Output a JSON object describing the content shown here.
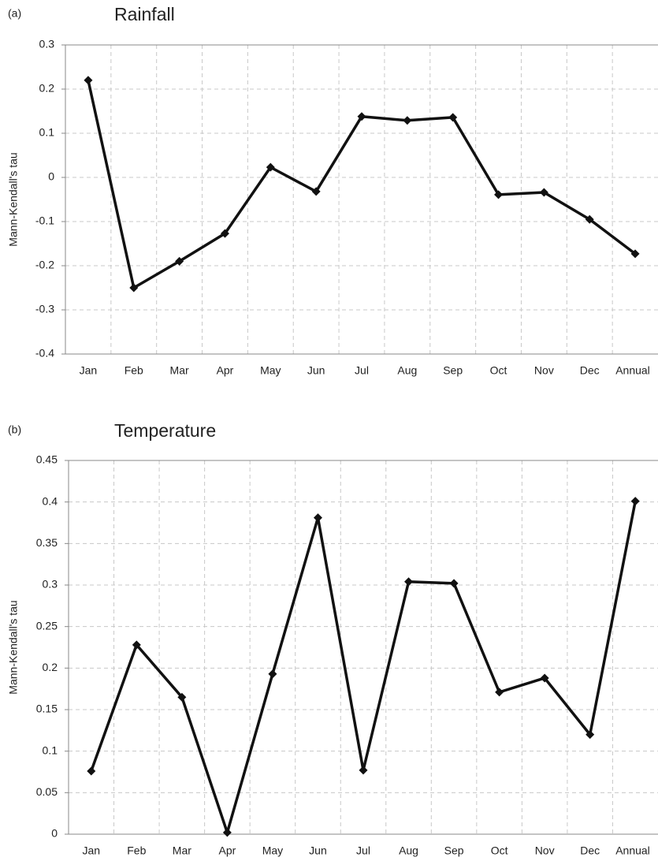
{
  "chart_data": [
    {
      "type": "line",
      "label": "(a)",
      "title": "Rainfall",
      "y_label": "Mann-Kendall's tau",
      "categories": [
        "Jan",
        "Feb",
        "Mar",
        "Apr",
        "May",
        "Jun",
        "Jul",
        "Aug",
        "Sep",
        "Oct",
        "Nov",
        "Dec",
        "Annual"
      ],
      "series": [
        {
          "color": "#111111",
          "values": [
            0.22,
            -0.25,
            -0.19,
            -0.127,
            0.023,
            -0.032,
            0.138,
            0.129,
            0.136,
            -0.039,
            -0.034,
            -0.095,
            -0.173
          ]
        }
      ],
      "ylim": [
        -0.4,
        0.3
      ],
      "yticks": [
        -0.4,
        -0.3,
        -0.2,
        -0.1,
        0,
        0.1,
        0.2,
        0.3
      ],
      "grid": true
    },
    {
      "type": "line",
      "label": "(b)",
      "title": "Temperature",
      "y_label": "Mann-Kendall's tau",
      "categories": [
        "Jan",
        "Feb",
        "Mar",
        "Apr",
        "May",
        "Jun",
        "Jul",
        "Aug",
        "Sep",
        "Oct",
        "Nov",
        "Dec",
        "Annual"
      ],
      "series": [
        {
          "color": "#111111",
          "values": [
            0.076,
            0.228,
            0.165,
            0.002,
            0.193,
            0.381,
            0.077,
            0.304,
            0.302,
            0.171,
            0.188,
            0.12,
            0.401
          ]
        }
      ],
      "ylim": [
        0,
        0.45
      ],
      "yticks": [
        0,
        0.05,
        0.1,
        0.15,
        0.2,
        0.25,
        0.3,
        0.35,
        0.4,
        0.45
      ],
      "grid": true
    }
  ]
}
